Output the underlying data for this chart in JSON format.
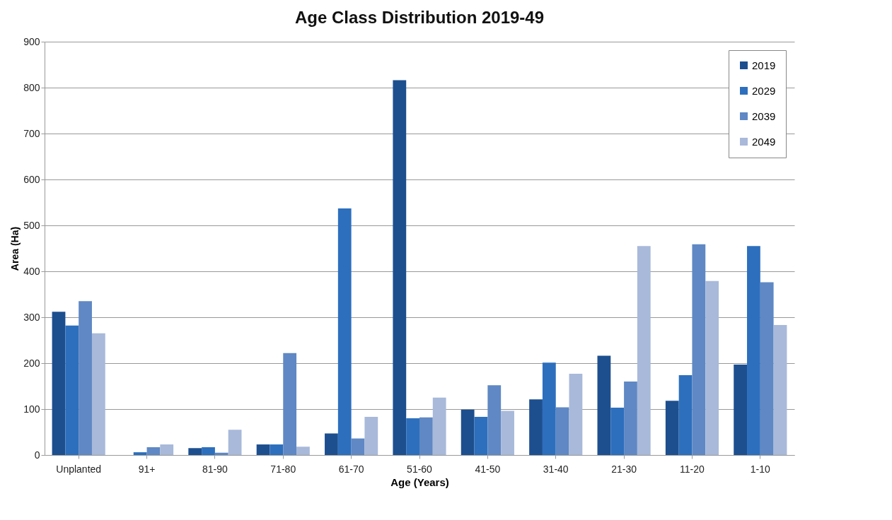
{
  "chart_data": {
    "type": "bar",
    "title": "Age Class Distribution 2019-49",
    "xlabel": "Age (Years)",
    "ylabel": "Area (Ha)",
    "categories": [
      "Unplanted",
      "91+",
      "81-90",
      "71-80",
      "61-70",
      "51-60",
      "41-50",
      "31-40",
      "21-30",
      "11-20",
      "1-10"
    ],
    "series": [
      {
        "name": "2019",
        "color": "#1d4f8f",
        "values": [
          312,
          0,
          15,
          23,
          47,
          816,
          99,
          121,
          216,
          118,
          197
        ]
      },
      {
        "name": "2029",
        "color": "#2d6fbd",
        "values": [
          282,
          6,
          17,
          23,
          537,
          80,
          83,
          201,
          103,
          174,
          455
        ]
      },
      {
        "name": "2039",
        "color": "#5f88c4",
        "values": [
          335,
          17,
          5,
          222,
          36,
          82,
          152,
          104,
          160,
          459,
          376
        ]
      },
      {
        "name": "2049",
        "color": "#a8b9da",
        "values": [
          265,
          23,
          55,
          18,
          83,
          125,
          96,
          177,
          455,
          379,
          283
        ]
      }
    ],
    "ylim": [
      0,
      900
    ],
    "yticks": [
      0,
      100,
      200,
      300,
      400,
      500,
      600,
      700,
      800,
      900
    ],
    "grid": "y",
    "legend": "top right"
  }
}
